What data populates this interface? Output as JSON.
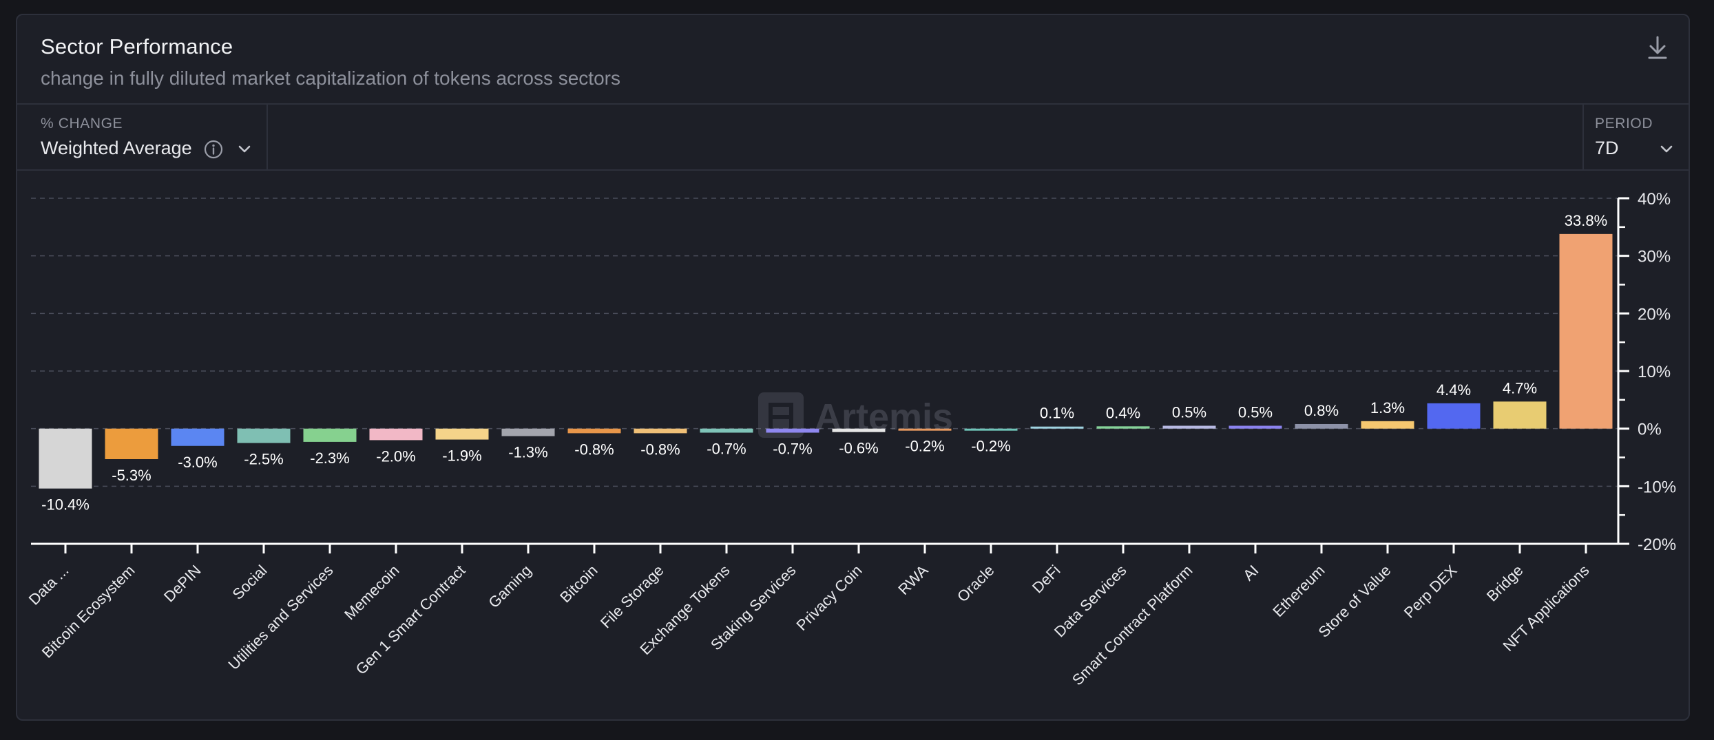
{
  "header": {
    "title": "Sector Performance",
    "subtitle": "change in fully diluted market capitalization of tokens across sectors",
    "download_icon": "download-icon"
  },
  "controls": {
    "metric": {
      "label": "% CHANGE",
      "value": "Weighted Average",
      "info_icon": "info-icon",
      "chevron_icon": "chevron-down-icon"
    },
    "period": {
      "label": "PERIOD",
      "value": "7D",
      "chevron_icon": "chevron-down-icon"
    }
  },
  "watermark": "Artemis",
  "chart_data": {
    "type": "bar",
    "categories": [
      "Data ...",
      "Bitcoin Ecosystem",
      "DePIN",
      "Social",
      "Utilities and Services",
      "Memecoin",
      "Gen 1 Smart Contract",
      "Gaming",
      "Bitcoin",
      "File Storage",
      "Exchange Tokens",
      "Staking Services",
      "Privacy Coin",
      "RWA",
      "Oracle",
      "DeFi",
      "Data Services",
      "Smart Contract Platform",
      "AI",
      "Ethereum",
      "Store of Value",
      "Perp DEX",
      "Bridge",
      "NFT Applications"
    ],
    "values": [
      -10.4,
      -5.3,
      -3.0,
      -2.5,
      -2.3,
      -2.0,
      -1.9,
      -1.3,
      -0.8,
      -0.8,
      -0.7,
      -0.7,
      -0.6,
      -0.2,
      -0.2,
      0.1,
      0.4,
      0.5,
      0.5,
      0.8,
      1.3,
      4.4,
      4.7,
      33.8
    ],
    "value_labels": [
      "-10.4%",
      "-5.3%",
      "-3.0%",
      "-2.5%",
      "-2.3%",
      "-2.0%",
      "-1.9%",
      "-1.3%",
      "-0.8%",
      "-0.8%",
      "-0.7%",
      "-0.7%",
      "-0.6%",
      "-0.2%",
      "-0.2%",
      "0.1%",
      "0.4%",
      "0.5%",
      "0.5%",
      "0.8%",
      "1.3%",
      "4.4%",
      "4.7%",
      "33.8%"
    ],
    "colors": [
      "#d6d6d6",
      "#ec9c3d",
      "#5b86f2",
      "#7fbfb3",
      "#86d18f",
      "#f2b8c6",
      "#f5d48a",
      "#a3a5ad",
      "#e8964a",
      "#f0c077",
      "#7fc4b8",
      "#8f88f0",
      "#e6e6e6",
      "#e89a60",
      "#6fc5b9",
      "#9fd3e0",
      "#86d39a",
      "#b7b9e2",
      "#8b83ef",
      "#8d92a8",
      "#f6c870",
      "#5368f0",
      "#e8cc72",
      "#f0a272"
    ],
    "y_ticks": [
      40,
      30,
      20,
      10,
      0,
      -10,
      -20
    ],
    "y_tick_labels": [
      "40%",
      "30%",
      "20%",
      "10%",
      "0%",
      "-10%",
      "-20%"
    ],
    "ylim": [
      -20,
      40
    ],
    "grid": true,
    "xlabel": "",
    "ylabel": "",
    "title": "Sector Performance"
  }
}
